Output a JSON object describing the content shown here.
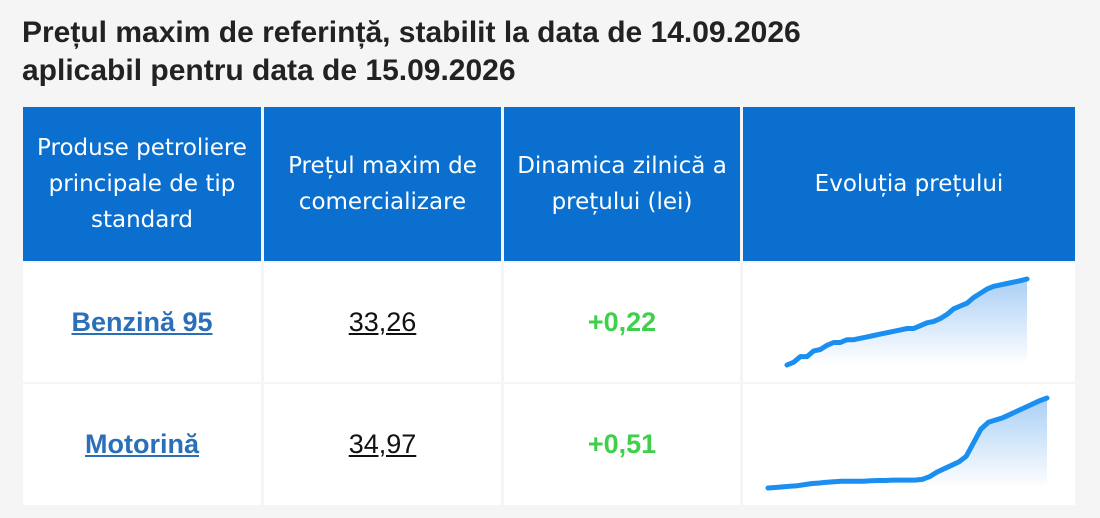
{
  "title": {
    "line1": "Prețul maxim de referință, stabilit la data de 14.09.2026",
    "line2": "aplicabil pentru data de 15.09.2026"
  },
  "table": {
    "headers": [
      "Produse petroliere principale de tip standard",
      "Prețul maxim de comercializare",
      "Dinamica zilnică a prețului (lei)",
      "Evoluția prețului"
    ],
    "rows": [
      {
        "product": "Benzină 95",
        "price": "33,26",
        "delta": "+0,22",
        "trend": [
          30.2,
          30.3,
          30.5,
          30.5,
          30.7,
          30.75,
          30.9,
          31.0,
          31.0,
          31.1,
          31.1,
          31.15,
          31.2,
          31.25,
          31.3,
          31.35,
          31.4,
          31.45,
          31.5,
          31.5,
          31.6,
          31.7,
          31.75,
          31.85,
          32.0,
          32.2,
          32.3,
          32.4,
          32.6,
          32.75,
          32.9,
          33.0,
          33.05,
          33.1,
          33.15,
          33.2,
          33.26
        ]
      },
      {
        "product": "Motorină",
        "price": "34,97",
        "delta": "+0,51",
        "trend": [
          31.0,
          31.02,
          31.05,
          31.08,
          31.1,
          31.15,
          31.2,
          31.22,
          31.25,
          31.28,
          31.3,
          31.3,
          31.3,
          31.3,
          31.32,
          31.33,
          31.33,
          31.35,
          31.35,
          31.35,
          31.35,
          31.38,
          31.5,
          31.7,
          31.85,
          32.0,
          32.15,
          32.4,
          33.0,
          33.6,
          33.9,
          34.0,
          34.1,
          34.25,
          34.4,
          34.55,
          34.7,
          34.85,
          34.97
        ]
      }
    ]
  },
  "colors": {
    "header_bg": "#0a6fcf",
    "link": "#2a6fb7",
    "positive": "#3ecf4b",
    "spark_line": "#1a8ff0",
    "spark_fill_top": "#a9cff5"
  }
}
